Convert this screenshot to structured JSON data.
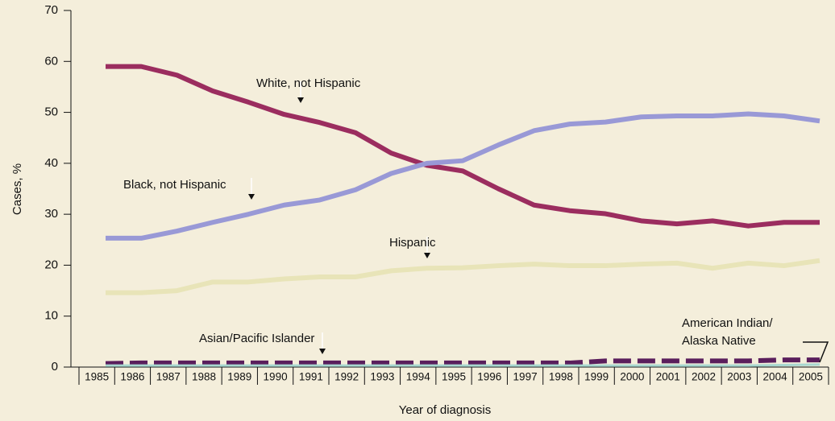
{
  "chart_data": {
    "type": "line",
    "ylabel": "Cases, %",
    "xlabel": "Year of diagnosis",
    "categories": [
      1985,
      1986,
      1987,
      1988,
      1989,
      1990,
      1991,
      1992,
      1993,
      1994,
      1995,
      1996,
      1997,
      1998,
      1999,
      2000,
      2001,
      2002,
      2003,
      2004,
      2005
    ],
    "ylim": [
      0,
      70
    ],
    "yticks": [
      0,
      10,
      20,
      30,
      40,
      50,
      60,
      70
    ],
    "series": [
      {
        "name": "White, not Hispanic",
        "color": "#9b2d5f",
        "values": [
          59,
          59,
          57.3,
          54.2,
          52,
          49.6,
          48,
          46,
          42,
          39.6,
          38.5,
          35,
          31.8,
          30.7,
          30.1,
          28.7,
          28.1,
          28.7,
          27.7,
          28.4,
          28.4
        ]
      },
      {
        "name": "Black, not Hispanic",
        "color": "#9999d6",
        "values": [
          25.3,
          25.3,
          26.7,
          28.4,
          30,
          31.8,
          32.8,
          34.8,
          38,
          40,
          40.5,
          43.6,
          46.4,
          47.7,
          48.1,
          49.1,
          49.3,
          49.3,
          49.7,
          49.3,
          48.3
        ]
      },
      {
        "name": "Hispanic",
        "color": "#e8e4b8",
        "values": [
          14.6,
          14.6,
          15,
          16.7,
          16.7,
          17.3,
          17.7,
          17.7,
          18.9,
          19.4,
          19.5,
          19.9,
          20.2,
          19.9,
          19.9,
          20.2,
          20.4,
          19.4,
          20.4,
          19.9,
          20.9
        ]
      },
      {
        "name": "Asian/Pacific Islander",
        "color": "#5a1e5c",
        "dashed": true,
        "values": [
          0.7,
          0.8,
          0.8,
          0.8,
          0.8,
          0.8,
          0.8,
          0.8,
          0.8,
          0.8,
          0.8,
          0.8,
          0.8,
          0.8,
          1.2,
          1.2,
          1.2,
          1.2,
          1.2,
          1.4,
          1.4
        ]
      },
      {
        "name": "American Indian/ Alaska Native",
        "label_lines": [
          "American Indian/",
          "Alaska Native"
        ],
        "color": "#a8d8d0",
        "values": [
          0.3,
          0.3,
          0.3,
          0.3,
          0.3,
          0.3,
          0.3,
          0.3,
          0.3,
          0.3,
          0.3,
          0.3,
          0.3,
          0.3,
          0.3,
          0.3,
          0.3,
          0.3,
          0.3,
          0.4,
          0.5
        ]
      }
    ]
  }
}
